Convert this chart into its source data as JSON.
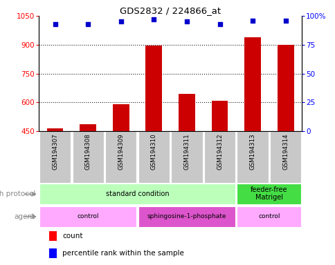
{
  "title": "GDS2832 / 224866_at",
  "samples": [
    "GSM194307",
    "GSM194308",
    "GSM194309",
    "GSM194310",
    "GSM194311",
    "GSM194312",
    "GSM194313",
    "GSM194314"
  ],
  "counts": [
    463,
    487,
    590,
    897,
    645,
    610,
    940,
    900
  ],
  "percentile_ranks": [
    93,
    93,
    95,
    97,
    95,
    93,
    96,
    96
  ],
  "ylim_left": [
    450,
    1050
  ],
  "ylim_right": [
    0,
    100
  ],
  "yticks_left": [
    450,
    600,
    750,
    900,
    1050
  ],
  "yticks_right": [
    0,
    25,
    50,
    75,
    100
  ],
  "ytick_right_labels": [
    "0",
    "25",
    "50",
    "75",
    "100%"
  ],
  "grid_lines": [
    600,
    750,
    900
  ],
  "bar_color": "#cc0000",
  "dot_color": "#0000cc",
  "growth_protocol_groups": [
    {
      "label": "standard condition",
      "start": 0,
      "end": 6,
      "color": "#bbffbb"
    },
    {
      "label": "feeder-free\nMatrigel",
      "start": 6,
      "end": 8,
      "color": "#44dd44"
    }
  ],
  "agent_groups": [
    {
      "label": "control",
      "start": 0,
      "end": 3,
      "color": "#ffaaff"
    },
    {
      "label": "sphingosine-1-phosphate",
      "start": 3,
      "end": 6,
      "color": "#dd55cc"
    },
    {
      "label": "control",
      "start": 6,
      "end": 8,
      "color": "#ffaaff"
    }
  ],
  "legend_count_label": "count",
  "legend_percentile_label": "percentile rank within the sample",
  "xlabel_growth": "growth protocol",
  "xlabel_agent": "agent",
  "sample_box_color": "#c8c8c8",
  "bar_width": 0.5
}
